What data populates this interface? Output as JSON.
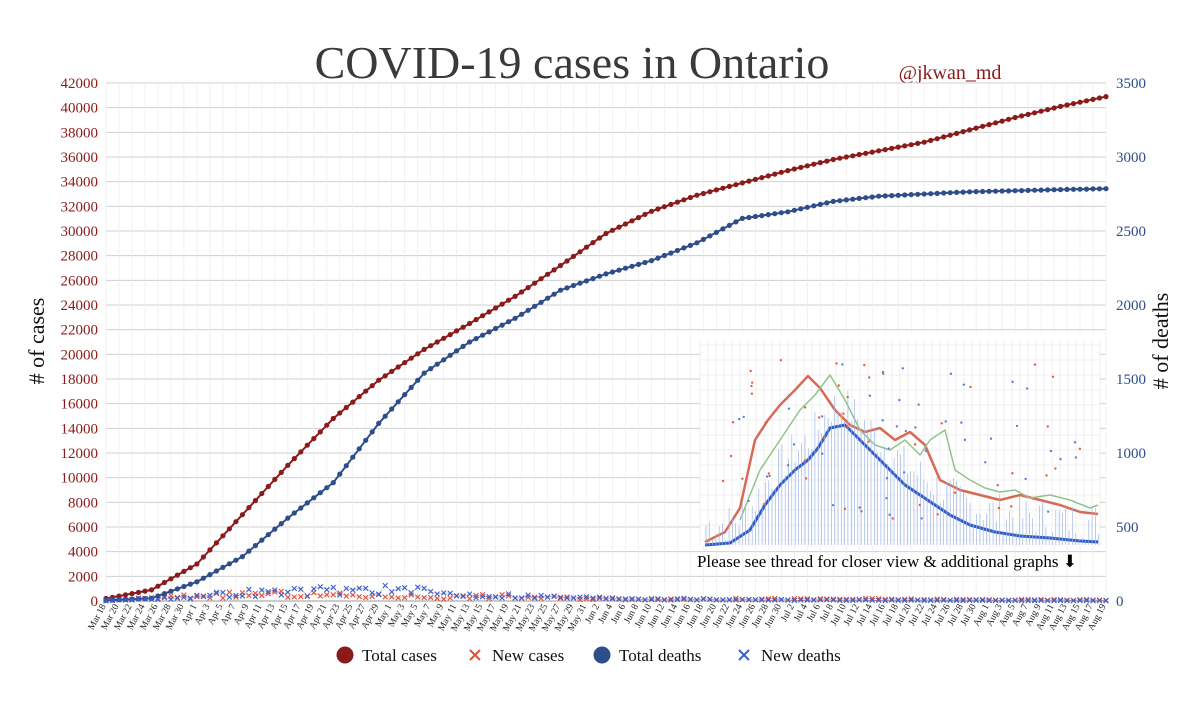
{
  "chart_data": {
    "type": "line",
    "title": "COVID-19 cases in Ontario",
    "credit": "@jkwan_md",
    "ylabel_left": "# of cases",
    "ylabel_right": "# of deaths",
    "ylim_left": [
      0,
      42000
    ],
    "ylim_right": [
      0,
      3500
    ],
    "yticks_left": [
      0,
      2000,
      4000,
      6000,
      8000,
      10000,
      12000,
      14000,
      16000,
      18000,
      20000,
      22000,
      24000,
      26000,
      28000,
      30000,
      32000,
      34000,
      36000,
      38000,
      40000,
      42000
    ],
    "yticks_right": [
      0,
      500,
      1000,
      1500,
      2000,
      2500,
      3000,
      3500
    ],
    "x_tick_labels": [
      "Mar 18",
      "Mar 20",
      "Mar 22",
      "Mar 24",
      "Mar 26",
      "Mar 28",
      "Mar 30",
      "Apr 1",
      "Apr 3",
      "Apr 5",
      "Apr 7",
      "Apr 9",
      "Apr 11",
      "Apr 13",
      "Apr 15",
      "Apr 17",
      "Apr 19",
      "Apr 21",
      "Apr 23",
      "Apr 25",
      "Apr 27",
      "Apr 29",
      "May 1",
      "May 3",
      "May 5",
      "May 7",
      "May 9",
      "May 11",
      "May 13",
      "May 15",
      "May 17",
      "May 19",
      "May 21",
      "May 23",
      "May 25",
      "May 27",
      "May 29",
      "May 31",
      "Jun 2",
      "Jun 4",
      "Jun 6",
      "Jun 8",
      "Jun 10",
      "Jun 12",
      "Jun 14",
      "Jun 16",
      "Jun 18",
      "Jun 20",
      "Jun 22",
      "Jun 24",
      "Jun 26",
      "Jun 28",
      "Jun 30",
      "Jul 2",
      "Jul 4",
      "Jul 6",
      "Jul 8",
      "Jul 10",
      "Jul 12",
      "Jul 14",
      "Jul 16",
      "Jul 18",
      "Jul 20",
      "Jul 22",
      "Jul 24",
      "Jul 26",
      "Jul 28",
      "Jul 30",
      "Aug 1",
      "Aug 3",
      "Aug 5",
      "Aug 7",
      "Aug 9",
      "Aug 11",
      "Aug 13",
      "Aug 15",
      "Aug 17",
      "Aug 19"
    ],
    "series": [
      {
        "name": "Total cases",
        "axis": "left",
        "marker": "circle",
        "color": "#8b1a1a",
        "anchor_days": [
          0,
          7,
          14,
          21,
          28,
          35,
          42,
          49,
          56,
          63,
          70,
          77,
          84,
          91,
          98,
          105,
          112,
          119,
          126,
          133,
          140,
          147,
          154
        ],
        "anchor_values": [
          200,
          900,
          3000,
          7000,
          11000,
          14800,
          17900,
          20400,
          22500,
          24700,
          27200,
          29800,
          31600,
          32900,
          33900,
          34900,
          35800,
          36500,
          37200,
          38200,
          39200,
          40100,
          40900
        ]
      },
      {
        "name": "New cases",
        "axis": "left",
        "marker": "x",
        "color": "#e0533a",
        "anchor_days": [
          0,
          10,
          17,
          24,
          31,
          38,
          45,
          52,
          59,
          66,
          73,
          80,
          87,
          94,
          101,
          108,
          115,
          122,
          129,
          136,
          143,
          150,
          154
        ],
        "anchor_values": [
          50,
          300,
          450,
          550,
          480,
          430,
          380,
          300,
          380,
          280,
          220,
          180,
          160,
          140,
          160,
          130,
          150,
          130,
          110,
          95,
          90,
          85,
          80
        ]
      },
      {
        "name": "Total deaths",
        "axis": "right",
        "marker": "circle",
        "color": "#2e4d8a",
        "anchor_days": [
          0,
          7,
          14,
          21,
          28,
          35,
          42,
          49,
          56,
          63,
          70,
          77,
          84,
          91,
          98,
          105,
          112,
          119,
          126,
          133,
          140,
          147,
          154
        ],
        "anchor_values": [
          5,
          18,
          130,
          300,
          560,
          800,
          1200,
          1540,
          1750,
          1910,
          2100,
          2210,
          2300,
          2420,
          2585,
          2630,
          2700,
          2735,
          2750,
          2765,
          2772,
          2780,
          2786
        ]
      },
      {
        "name": "New deaths",
        "axis": "right",
        "marker": "x",
        "color": "#3a5fd0",
        "anchor_days": [
          0,
          14,
          21,
          28,
          35,
          42,
          45,
          49,
          52,
          56,
          63,
          70,
          77,
          84,
          91,
          98,
          105,
          112,
          119,
          126,
          133,
          140,
          147,
          154
        ],
        "anchor_values": [
          1,
          30,
          55,
          60,
          70,
          80,
          70,
          60,
          50,
          40,
          35,
          25,
          20,
          15,
          12,
          10,
          8,
          6,
          5,
          4,
          3,
          3,
          2,
          2
        ]
      }
    ]
  },
  "inset_note": "Please see thread for closer view & additional graphs ⬇",
  "colors": {
    "cases": "#8b1a1a",
    "new_cases": "#e0533a",
    "deaths": "#2e4d8a",
    "new_deaths": "#3a5fd0"
  }
}
